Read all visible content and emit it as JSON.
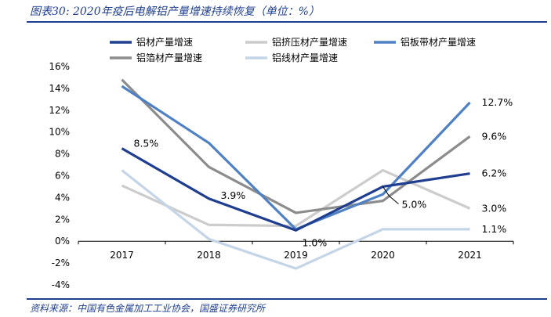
{
  "header": {
    "title": "图表30: 2020年疫后电解铝产量增速持续恢复（单位：%）"
  },
  "footer": {
    "source": "资料来源：中国有色金属加工工业协会，国盛证券研究所"
  },
  "chart_data": {
    "type": "line",
    "title": "图表30: 2020年疫后电解铝产量增速持续恢复（单位：%）",
    "categories": [
      "2017",
      "2018",
      "2019",
      "2020",
      "2021"
    ],
    "ylim": [
      -4,
      16
    ],
    "yticks": [
      "-4%",
      "-2%",
      "0%",
      "2%",
      "4%",
      "6%",
      "8%",
      "10%",
      "12%",
      "14%",
      "16%"
    ],
    "grid": false,
    "legend_position": "top",
    "series": [
      {
        "name": "铝材产量增速",
        "color": "#1f3e8f",
        "values": [
          8.5,
          3.9,
          1.0,
          5.0,
          6.2
        ],
        "labels": [
          "8.5%",
          "3.9%",
          "1.0%",
          "5.0%",
          "6.2%"
        ]
      },
      {
        "name": "铝挤压材产量增速",
        "color": "#cccccc",
        "values": [
          5.1,
          1.5,
          1.4,
          6.5,
          3.0
        ],
        "labels": [
          "",
          "",
          "",
          "",
          "3.0%"
        ]
      },
      {
        "name": "铝板带材产量增速",
        "color": "#4f81c4",
        "values": [
          14.2,
          9.0,
          1.1,
          4.3,
          12.7
        ],
        "labels": [
          "",
          "",
          "",
          "",
          "12.7%"
        ]
      },
      {
        "name": "铝箔材产量增速",
        "color": "#8c8c8c",
        "values": [
          14.8,
          6.8,
          2.6,
          3.7,
          9.6
        ],
        "labels": [
          "",
          "",
          "",
          "",
          "9.6%"
        ]
      },
      {
        "name": "铝线材产量增速",
        "color": "#c5d5e8",
        "values": [
          6.5,
          0.2,
          -2.5,
          1.1,
          1.1
        ],
        "labels": [
          "",
          "",
          "",
          "",
          "1.1%"
        ]
      }
    ]
  }
}
